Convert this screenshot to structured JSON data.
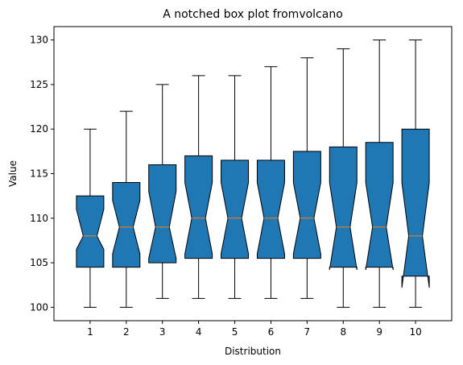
{
  "chart_data": {
    "type": "boxplot",
    "title": "A notched box plot fromvolcano",
    "xlabel": "Distribution",
    "ylabel": "Value",
    "ylim": [
      98.5,
      131.5
    ],
    "y_ticks": [
      100,
      105,
      110,
      115,
      120,
      125,
      130
    ],
    "grid": false,
    "notched": true,
    "colors": {
      "box": "#1f77b4",
      "median": "#ff7f0e",
      "line": "#000000"
    },
    "categories": [
      "1",
      "2",
      "3",
      "4",
      "5",
      "6",
      "7",
      "8",
      "9",
      "10"
    ],
    "boxes": [
      {
        "whisker_low": 100,
        "q1": 104.5,
        "notch_low": 106.5,
        "median": 108,
        "notch_high": 111,
        "q3": 112.5,
        "whisker_high": 120
      },
      {
        "whisker_low": 100,
        "q1": 104.5,
        "notch_low": 106,
        "median": 109,
        "notch_high": 112,
        "q3": 114,
        "whisker_high": 122
      },
      {
        "whisker_low": 101,
        "q1": 105,
        "notch_low": 105.5,
        "median": 109,
        "notch_high": 113,
        "q3": 116,
        "whisker_high": 125
      },
      {
        "whisker_low": 101,
        "q1": 105.5,
        "notch_low": 106,
        "median": 110,
        "notch_high": 114,
        "q3": 117,
        "whisker_high": 126
      },
      {
        "whisker_low": 101,
        "q1": 105.5,
        "notch_low": 106,
        "median": 110,
        "notch_high": 114,
        "q3": 116.5,
        "whisker_high": 126
      },
      {
        "whisker_low": 101,
        "q1": 105.5,
        "notch_low": 106,
        "median": 110,
        "notch_high": 114,
        "q3": 116.5,
        "whisker_high": 127
      },
      {
        "whisker_low": 101,
        "q1": 105.5,
        "notch_low": 106,
        "median": 110,
        "notch_high": 114,
        "q3": 117.5,
        "whisker_high": 128
      },
      {
        "whisker_low": 100,
        "q1": 104.5,
        "notch_low": 104.2,
        "median": 109,
        "notch_high": 114,
        "q3": 118,
        "whisker_high": 129
      },
      {
        "whisker_low": 100,
        "q1": 104.5,
        "notch_low": 104.2,
        "median": 109,
        "notch_high": 114,
        "q3": 118.5,
        "whisker_high": 130
      },
      {
        "whisker_low": 100,
        "q1": 103.5,
        "notch_low": 102.2,
        "median": 108,
        "notch_high": 114,
        "q3": 120,
        "whisker_high": 130
      }
    ]
  }
}
